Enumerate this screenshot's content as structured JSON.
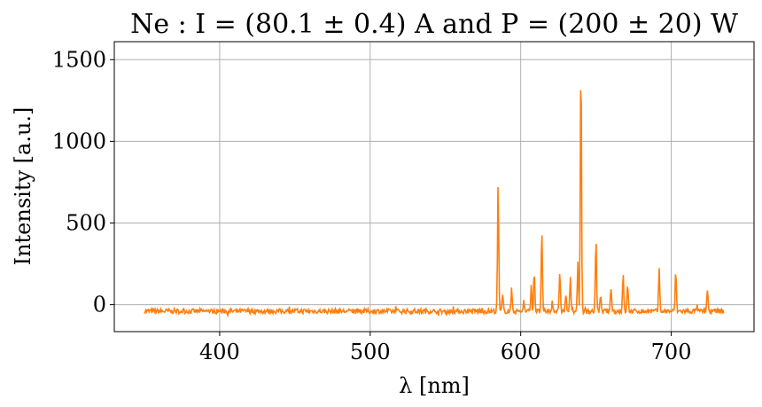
{
  "chart_data": {
    "type": "line",
    "title": "Ne : I = (80.1 ± 0.4) A and P = (200 ± 20) W",
    "xlabel": "λ [nm]",
    "ylabel": "Intensity [a.u.]",
    "xlim": [
      330,
      755
    ],
    "ylim": [
      -165,
      1610
    ],
    "xticks": [
      400,
      500,
      600,
      700
    ],
    "yticks": [
      0,
      500,
      1000,
      1500
    ],
    "grid": true,
    "series": [
      {
        "color": "#ff7f0e",
        "baseline": -40,
        "x_range": [
          350,
          735
        ],
        "peaks": [
          [
            585,
            745
          ],
          [
            588,
            60
          ],
          [
            594,
            95
          ],
          [
            602,
            20
          ],
          [
            607,
            110
          ],
          [
            609,
            210
          ],
          [
            614,
            445
          ],
          [
            621,
            15
          ],
          [
            626,
            195
          ],
          [
            630,
            65
          ],
          [
            633,
            160
          ],
          [
            638,
            250
          ],
          [
            640,
            1515
          ],
          [
            650,
            400
          ],
          [
            653,
            55
          ],
          [
            660,
            110
          ],
          [
            668,
            190
          ],
          [
            671,
            125
          ],
          [
            692,
            220
          ],
          [
            703,
            210
          ],
          [
            717,
            -10
          ],
          [
            724,
            100
          ]
        ]
      }
    ]
  }
}
